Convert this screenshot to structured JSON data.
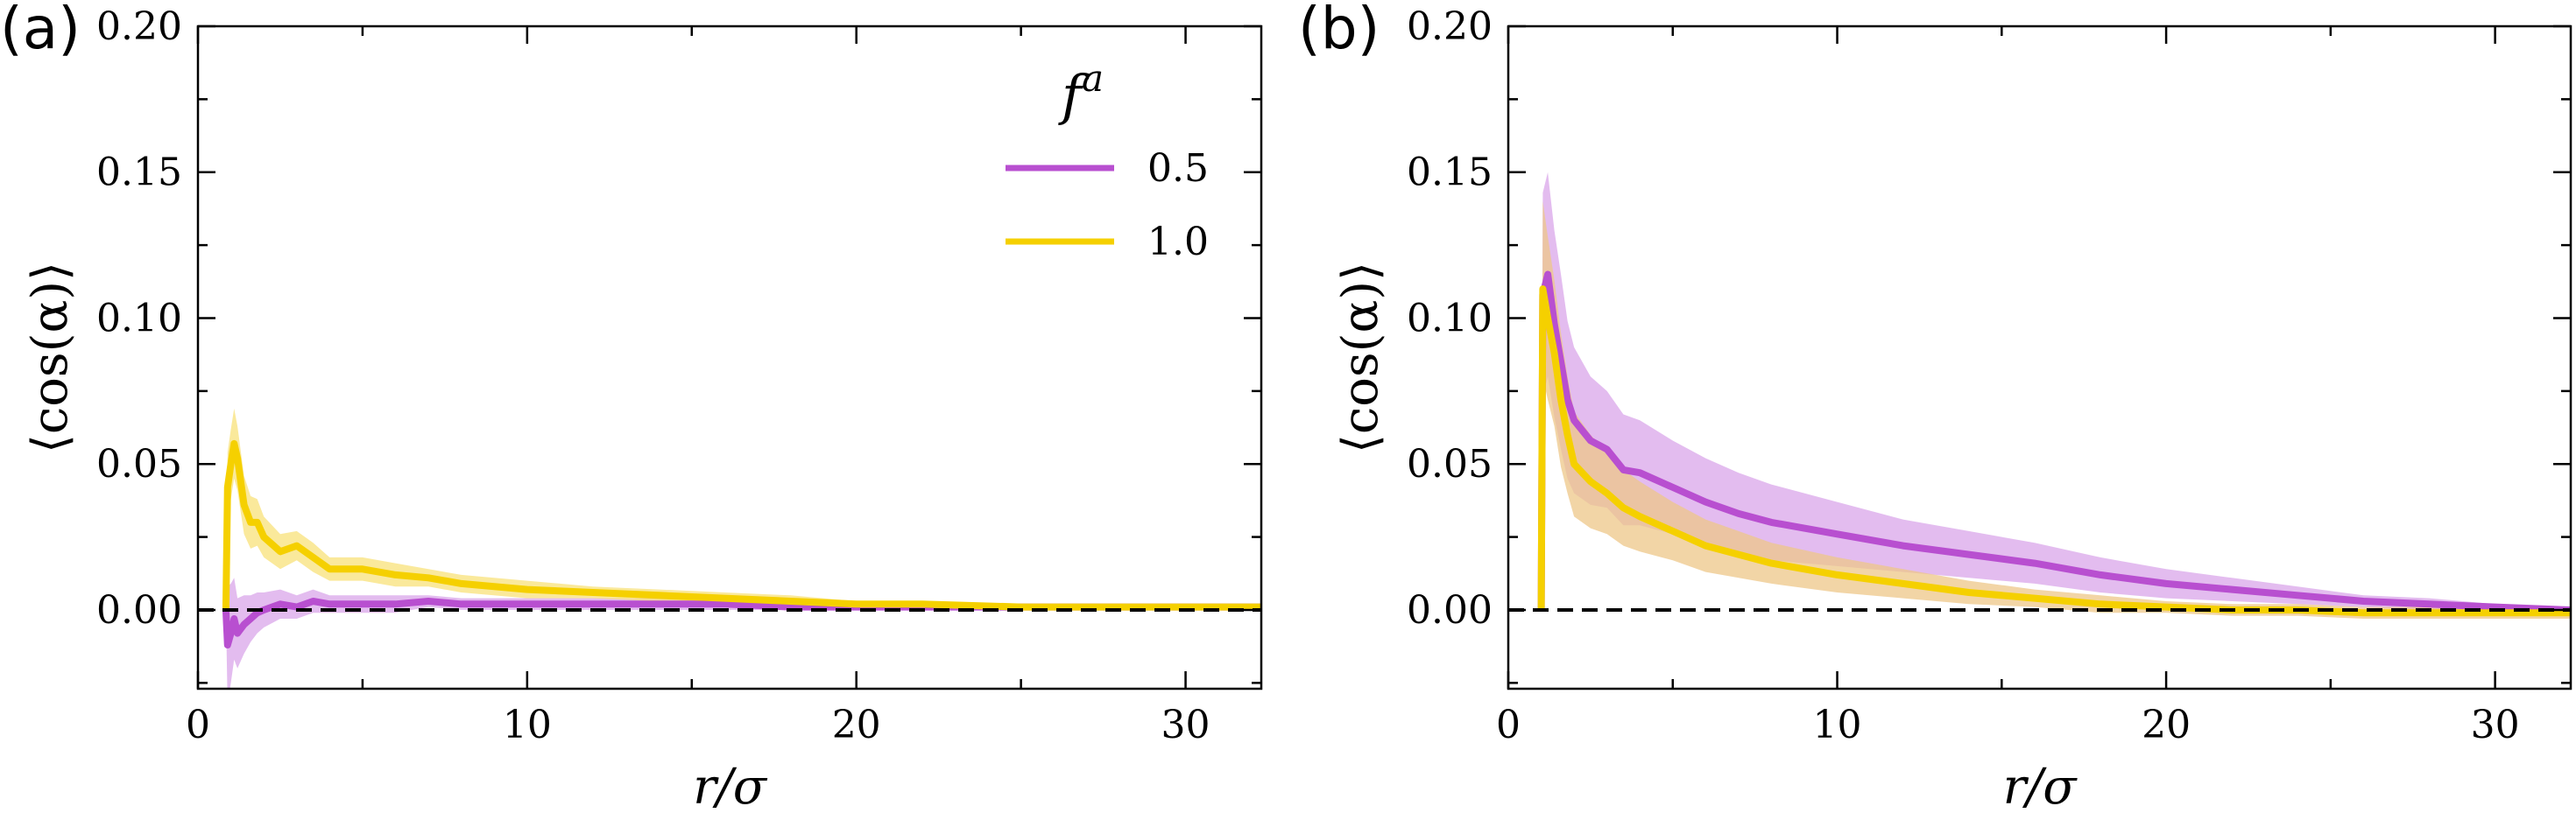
{
  "chart_data": [
    {
      "panel_label": "(a)",
      "type": "line",
      "xlabel": "r/σ",
      "ylabel": "⟨cos(α)⟩",
      "xlim": [
        0,
        32.3
      ],
      "ylim": [
        -0.027,
        0.2
      ],
      "xticks": [
        0,
        10,
        20,
        30
      ],
      "xtick_labels": [
        "0",
        "10",
        "20",
        "30"
      ],
      "yticks": [
        0.0,
        0.05,
        0.1,
        0.15,
        0.2
      ],
      "ytick_labels": [
        "0.00",
        "0.05",
        "0.10",
        "0.15",
        "0.20"
      ],
      "reference_line": {
        "y": 0.0,
        "style": "dashed",
        "color": "#000000"
      },
      "series": [
        {
          "name": "0.5",
          "color": "#b84fd0",
          "band_color": "#d9a6ea",
          "x": [
            0.85,
            0.9,
            1.0,
            1.1,
            1.2,
            1.4,
            1.6,
            1.8,
            2.0,
            2.5,
            3.0,
            3.5,
            4.0,
            5.0,
            6.0,
            7.0,
            8.0,
            10.0,
            12.0,
            14.0,
            16.0,
            18.0,
            20.0,
            22.0,
            25.0,
            28.0,
            30.0,
            32.3
          ],
          "y": [
            0.0,
            -0.012,
            -0.008,
            -0.003,
            -0.008,
            -0.005,
            -0.003,
            -0.001,
            0.0,
            0.002,
            0.001,
            0.003,
            0.002,
            0.002,
            0.002,
            0.003,
            0.002,
            0.002,
            0.002,
            0.002,
            0.002,
            0.001,
            0.001,
            0.001,
            0.001,
            0.001,
            0.001,
            0.001
          ],
          "err": [
            0.0,
            0.02,
            0.017,
            0.014,
            0.012,
            0.01,
            0.008,
            0.007,
            0.006,
            0.005,
            0.004,
            0.004,
            0.003,
            0.003,
            0.003,
            0.002,
            0.002,
            0.002,
            0.002,
            0.002,
            0.002,
            0.001,
            0.001,
            0.001,
            0.001,
            0.001,
            0.001,
            0.001
          ]
        },
        {
          "name": "1.0",
          "color": "#f5d000",
          "band_color": "#f8e17a",
          "x": [
            0.85,
            0.9,
            1.0,
            1.1,
            1.2,
            1.4,
            1.6,
            1.8,
            2.0,
            2.5,
            3.0,
            3.5,
            4.0,
            5.0,
            6.0,
            7.0,
            8.0,
            10.0,
            12.0,
            14.0,
            16.0,
            18.0,
            20.0,
            22.0,
            25.0,
            28.0,
            30.0,
            32.3
          ],
          "y": [
            0.0,
            0.042,
            0.05,
            0.057,
            0.052,
            0.036,
            0.03,
            0.03,
            0.025,
            0.02,
            0.022,
            0.018,
            0.014,
            0.014,
            0.012,
            0.011,
            0.009,
            0.007,
            0.006,
            0.005,
            0.004,
            0.003,
            0.002,
            0.002,
            0.001,
            0.001,
            0.001,
            0.001
          ],
          "err": [
            0.0,
            0.012,
            0.012,
            0.012,
            0.011,
            0.01,
            0.009,
            0.008,
            0.007,
            0.006,
            0.005,
            0.005,
            0.004,
            0.004,
            0.004,
            0.003,
            0.003,
            0.003,
            0.002,
            0.002,
            0.002,
            0.002,
            0.001,
            0.001,
            0.001,
            0.001,
            0.001,
            0.001
          ]
        }
      ],
      "legend": {
        "title": "f^a",
        "title_base": "f",
        "title_sup": "a",
        "placement": "top-right",
        "entries": [
          "0.5",
          "1.0"
        ]
      }
    },
    {
      "panel_label": "(b)",
      "type": "line",
      "xlabel": "r/σ",
      "ylabel": "⟨cos(α)⟩",
      "xlim": [
        0,
        32.3
      ],
      "ylim": [
        -0.027,
        0.2
      ],
      "xticks": [
        0,
        10,
        20,
        30
      ],
      "xtick_labels": [
        "0",
        "10",
        "20",
        "30"
      ],
      "yticks": [
        0.0,
        0.05,
        0.1,
        0.15,
        0.2
      ],
      "ytick_labels": [
        "0.00",
        "0.05",
        "0.10",
        "0.15",
        "0.20"
      ],
      "reference_line": {
        "y": 0.0,
        "style": "dashed",
        "color": "#000000"
      },
      "series": [
        {
          "name": "0.5",
          "color": "#b84fd0",
          "band_color": "#d9a6ea",
          "x": [
            1.0,
            1.05,
            1.2,
            1.4,
            1.6,
            1.8,
            2.0,
            2.5,
            3.0,
            3.5,
            4.0,
            5.0,
            6.0,
            7.0,
            8.0,
            10.0,
            12.0,
            14.0,
            16.0,
            18.0,
            20.0,
            22.0,
            24.0,
            26.0,
            28.0,
            30.0,
            32.3
          ],
          "y": [
            0.0,
            0.108,
            0.115,
            0.098,
            0.085,
            0.072,
            0.065,
            0.058,
            0.055,
            0.048,
            0.047,
            0.042,
            0.037,
            0.033,
            0.03,
            0.026,
            0.022,
            0.019,
            0.016,
            0.012,
            0.009,
            0.007,
            0.005,
            0.003,
            0.002,
            0.001,
            0.0
          ],
          "err": [
            0.0,
            0.035,
            0.035,
            0.032,
            0.03,
            0.027,
            0.025,
            0.022,
            0.02,
            0.019,
            0.018,
            0.016,
            0.015,
            0.014,
            0.013,
            0.011,
            0.009,
            0.008,
            0.007,
            0.006,
            0.005,
            0.004,
            0.003,
            0.002,
            0.002,
            0.001,
            0.001
          ]
        },
        {
          "name": "1.0",
          "color": "#f5d000",
          "band_color": "#edc788",
          "x": [
            1.0,
            1.05,
            1.2,
            1.4,
            1.6,
            1.8,
            2.0,
            2.5,
            3.0,
            3.5,
            4.0,
            5.0,
            6.0,
            7.0,
            8.0,
            10.0,
            12.0,
            14.0,
            16.0,
            18.0,
            20.0,
            22.0,
            24.0,
            26.0,
            28.0,
            30.0,
            32.3
          ],
          "y": [
            0.0,
            0.11,
            0.1,
            0.088,
            0.072,
            0.06,
            0.05,
            0.044,
            0.04,
            0.035,
            0.032,
            0.027,
            0.022,
            0.019,
            0.016,
            0.012,
            0.009,
            0.006,
            0.004,
            0.002,
            0.001,
            0.0,
            0.0,
            -0.001,
            -0.001,
            -0.001,
            -0.001
          ],
          "err": [
            0.0,
            0.03,
            0.028,
            0.025,
            0.023,
            0.02,
            0.018,
            0.016,
            0.014,
            0.013,
            0.012,
            0.01,
            0.009,
            0.008,
            0.007,
            0.006,
            0.005,
            0.004,
            0.003,
            0.003,
            0.002,
            0.002,
            0.002,
            0.002,
            0.002,
            0.002,
            0.002
          ]
        }
      ]
    }
  ]
}
